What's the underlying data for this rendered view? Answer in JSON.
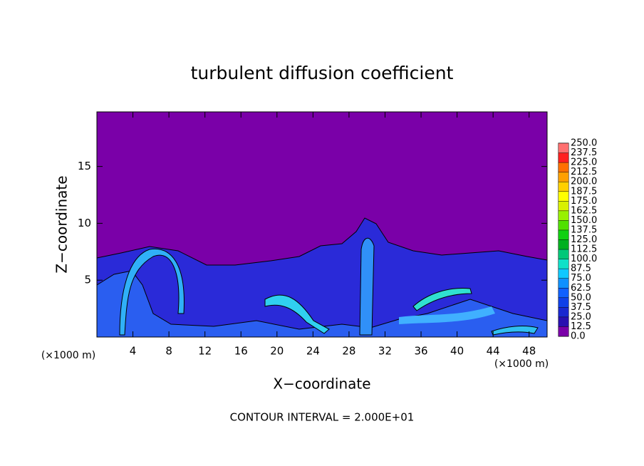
{
  "chart_data": {
    "type": "contour",
    "title": "turbulent diffusion coefficient",
    "xlabel": "X−coordinate",
    "ylabel": "Z−coordinate",
    "x_unit": "(×1000 m)",
    "z_unit": "(×1000 m)",
    "footnote": "CONTOUR INTERVAL = 2.000E+01",
    "xlim": [
      0,
      50
    ],
    "ylim": [
      0,
      19.8
    ],
    "xticks": [
      4,
      8,
      12,
      16,
      20,
      24,
      28,
      32,
      36,
      40,
      44,
      48
    ],
    "yticks": [
      5,
      10,
      15
    ],
    "colorbar_ticks": [
      {
        "value": 0,
        "label": "0.0"
      },
      {
        "value": 12.5,
        "label": "12.5"
      },
      {
        "value": 25,
        "label": "25.0"
      },
      {
        "value": 37.5,
        "label": "37.5"
      },
      {
        "value": 50,
        "label": "50.0"
      },
      {
        "value": 62.5,
        "label": "62.5"
      },
      {
        "value": 75,
        "label": "75.0"
      },
      {
        "value": 87.5,
        "label": "87.5"
      },
      {
        "value": 100,
        "label": "100.0"
      },
      {
        "value": 112.5,
        "label": "112.5"
      },
      {
        "value": 125,
        "label": "125.0"
      },
      {
        "value": 137.5,
        "label": "137.5"
      },
      {
        "value": 150,
        "label": "150.0"
      },
      {
        "value": 162.5,
        "label": "162.5"
      },
      {
        "value": 175,
        "label": "175.0"
      },
      {
        "value": 187.5,
        "label": "187.5"
      },
      {
        "value": 200,
        "label": "200.0"
      },
      {
        "value": 212.5,
        "label": "212.5"
      },
      {
        "value": 225,
        "label": "225.0"
      },
      {
        "value": 237.5,
        "label": "237.5"
      },
      {
        "value": 250,
        "label": "250.0"
      }
    ],
    "colorbar_colors": [
      "#7a00a8",
      "#2a10b0",
      "#1a28d0",
      "#1040e8",
      "#1060ff",
      "#1090ff",
      "#10c8ff",
      "#10e0c8",
      "#00c878",
      "#00b020",
      "#10d010",
      "#50e000",
      "#98f000",
      "#d8f000",
      "#ffff00",
      "#ffd000",
      "#ffa000",
      "#ff7000",
      "#ff2020",
      "#ff7070"
    ]
  }
}
